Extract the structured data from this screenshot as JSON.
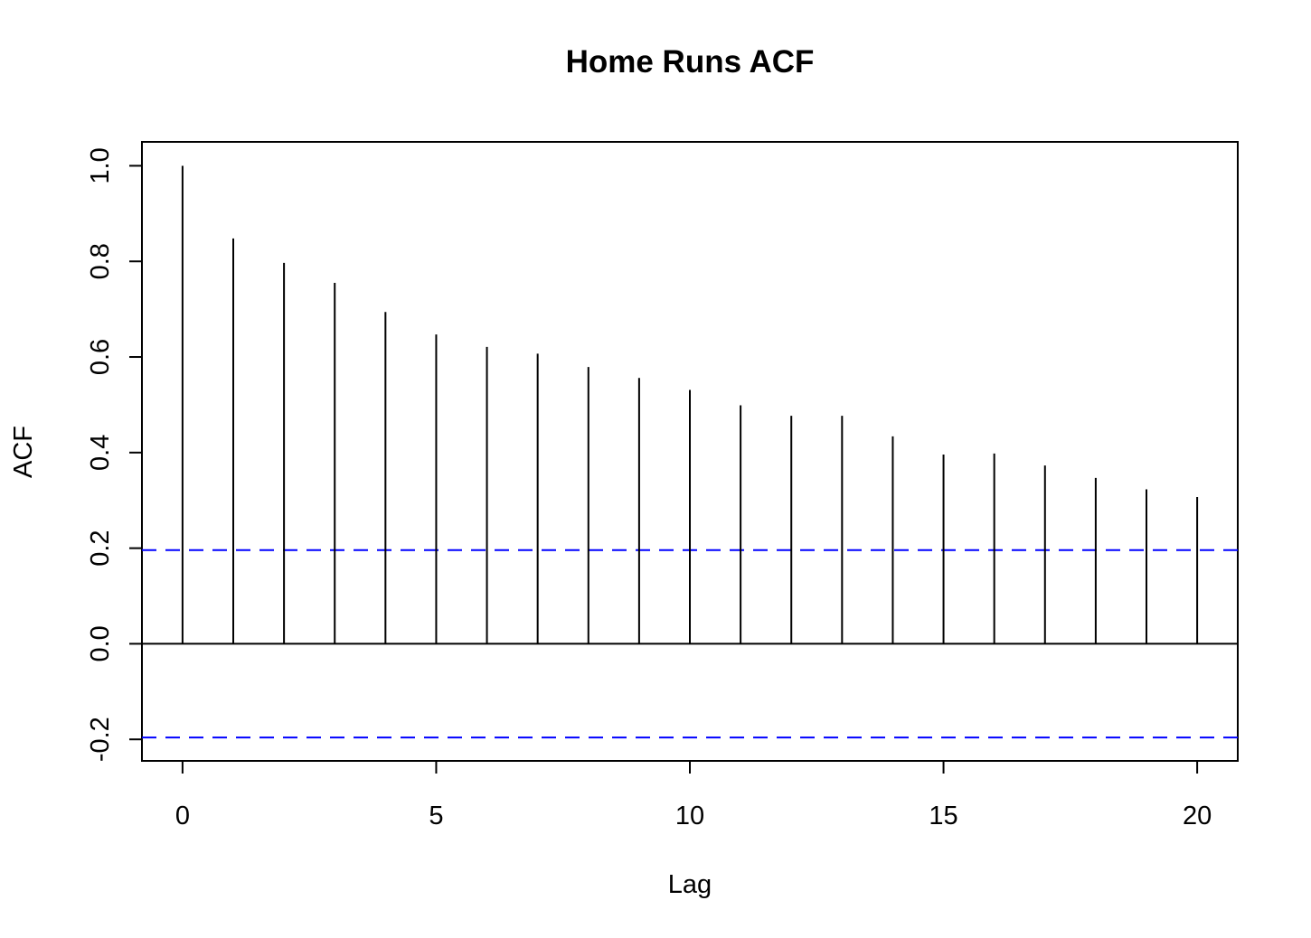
{
  "chart_data": {
    "type": "bar",
    "title": "Home Runs ACF",
    "xlabel": "Lag",
    "ylabel": "ACF",
    "x": [
      0,
      1,
      2,
      3,
      4,
      5,
      6,
      7,
      8,
      9,
      10,
      11,
      12,
      13,
      14,
      15,
      16,
      17,
      18,
      19,
      20
    ],
    "values": [
      1.0,
      0.848,
      0.797,
      0.755,
      0.694,
      0.647,
      0.621,
      0.607,
      0.579,
      0.556,
      0.531,
      0.499,
      0.477,
      0.477,
      0.434,
      0.396,
      0.398,
      0.373,
      0.347,
      0.323,
      0.307
    ],
    "xlim": [
      -0.8,
      20.8
    ],
    "ylim": [
      -0.245,
      1.05
    ],
    "xticks": [
      0,
      5,
      10,
      15,
      20
    ],
    "xtick_labels": [
      "0",
      "5",
      "10",
      "15",
      "20"
    ],
    "yticks": [
      -0.2,
      0.0,
      0.2,
      0.4,
      0.6,
      0.8,
      1.0
    ],
    "ytick_labels": [
      "-0.2",
      "0.0",
      "0.2",
      "0.4",
      "0.6",
      "0.8",
      "1.0"
    ],
    "confidence_bounds": [
      0.196,
      -0.196
    ],
    "zero_line": 0.0,
    "colors": {
      "bars": "#000000",
      "bounds": "#0000ff",
      "frame": "#000000"
    },
    "grid": false,
    "legend": "none"
  }
}
